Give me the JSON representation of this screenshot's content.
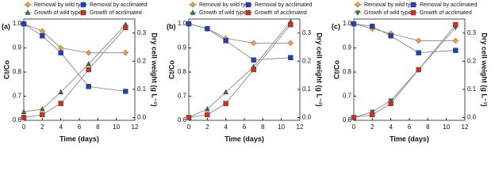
{
  "chart_data": [
    {
      "type": "line",
      "panel_label": "(a)",
      "x_label": "Time (days)",
      "y_label": "Ct/Co",
      "y2_label": "Dry cell weight (g L⁻¹)",
      "x": [
        0,
        2,
        4,
        7,
        11
      ],
      "xlim": [
        0,
        12
      ],
      "xticks": [
        0,
        2,
        4,
        6,
        8,
        10,
        12
      ],
      "ylim": [
        0.6,
        1.02
      ],
      "yticks": [
        {
          "value": 0.6,
          "label": "0.6"
        },
        0.7,
        0.8,
        0.9,
        {
          "value": 1,
          "label": "1.0"
        }
      ],
      "y2lim": [
        -0.01,
        0.35
      ],
      "y2ticks": [
        {
          "value": 0,
          "label": "0.0"
        },
        0.1,
        0.2,
        0.3
      ],
      "series": [
        {
          "name": "Removal by wild type",
          "color": "#f0a030",
          "marker": "diamond",
          "values": [
            1.0,
            0.97,
            0.9,
            0.88,
            0.88
          ]
        },
        {
          "name": "Removal by acclimated",
          "color": "#2040c0",
          "marker": "square",
          "values": [
            1.0,
            0.95,
            0.88,
            0.74,
            0.72
          ]
        },
        {
          "name": "Growth of wild type",
          "color": "#2a7a2a",
          "marker": "triangle-up",
          "axis": "y2",
          "values": [
            0.02,
            0.03,
            0.09,
            0.19,
            0.33
          ]
        },
        {
          "name": "Growth of acclimated",
          "color": "#d03020",
          "marker": "square",
          "axis": "y2",
          "values": [
            0.0,
            0.01,
            0.05,
            0.17,
            0.32
          ]
        }
      ]
    },
    {
      "type": "line",
      "panel_label": "(b)",
      "x_label": "Time (days)",
      "y_label": "Ct/Co",
      "y2_label": "Dry cell weight (g L⁻¹)",
      "x": [
        0,
        2,
        4,
        7,
        11
      ],
      "xlim": [
        0,
        12
      ],
      "xticks": [
        0,
        2,
        4,
        6,
        8,
        10,
        12
      ],
      "ylim": [
        0.6,
        1.02
      ],
      "yticks": [
        {
          "value": 0.6,
          "label": "0.6"
        },
        0.7,
        0.8,
        0.9,
        {
          "value": 1,
          "label": "1.0"
        }
      ],
      "y2lim": [
        -0.01,
        0.35
      ],
      "y2ticks": [
        {
          "value": 0,
          "label": "0.0"
        },
        0.1,
        0.2,
        0.3
      ],
      "series": [
        {
          "name": "Removal by wild type",
          "color": "#f0a030",
          "marker": "diamond",
          "values": [
            1.0,
            0.98,
            0.94,
            0.92,
            0.92
          ]
        },
        {
          "name": "Removal by acclimated",
          "color": "#2040c0",
          "marker": "square",
          "values": [
            1.0,
            0.98,
            0.93,
            0.85,
            0.86
          ]
        },
        {
          "name": "Growth of wild type",
          "color": "#2a7a2a",
          "marker": "triangle-up",
          "axis": "y2",
          "values": [
            0.0,
            0.03,
            0.09,
            0.18,
            0.34
          ]
        },
        {
          "name": "Growth of acclimated",
          "color": "#d03020",
          "marker": "square",
          "axis": "y2",
          "values": [
            0.0,
            0.01,
            0.05,
            0.17,
            0.33
          ]
        }
      ]
    },
    {
      "type": "line",
      "panel_label": "(c)",
      "x_label": "Time (days)",
      "y_label": "Ct/Co",
      "y2_label": "Dry cell weight (g L⁻¹)",
      "x": [
        0,
        2,
        4,
        7,
        11
      ],
      "xlim": [
        0,
        12
      ],
      "xticks": [
        0,
        2,
        4,
        6,
        8,
        10,
        12
      ],
      "ylim": [
        0.6,
        1.02
      ],
      "yticks": [
        {
          "value": 0.6,
          "label": "0.6"
        },
        0.7,
        0.8,
        0.9,
        {
          "value": 1,
          "label": "1.0"
        }
      ],
      "y2lim": [
        -0.01,
        0.35
      ],
      "y2ticks": [
        {
          "value": 0,
          "label": "0.0"
        },
        0.1,
        0.2,
        0.3
      ],
      "series": [
        {
          "name": "Removal by wild type",
          "color": "#f0a030",
          "marker": "diamond",
          "values": [
            1.0,
            0.98,
            0.96,
            0.93,
            0.93
          ]
        },
        {
          "name": "Removal by acclimated",
          "color": "#2040c0",
          "marker": "square",
          "values": [
            1.0,
            0.99,
            0.95,
            0.88,
            0.89
          ]
        },
        {
          "name": "Growth of wild type",
          "color": "#2a7a2a",
          "marker": "triangle-down",
          "axis": "y2",
          "values": [
            0.0,
            0.02,
            0.06,
            0.17,
            0.32
          ]
        },
        {
          "name": "Growth of acclimated",
          "color": "#d03020",
          "marker": "square",
          "axis": "y2",
          "values": [
            0.0,
            0.01,
            0.05,
            0.17,
            0.33
          ]
        }
      ]
    }
  ]
}
